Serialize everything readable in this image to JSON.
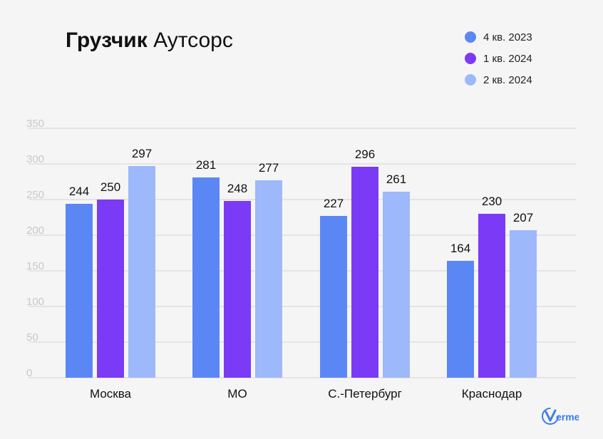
{
  "title": {
    "bold": "Грузчик",
    "rest": "Аутсорс"
  },
  "logo_text": "erme",
  "chart_data": {
    "type": "bar",
    "title": "Грузчик Аутсорс",
    "categories": [
      "Москва",
      "МО",
      "С.-Петербург",
      "Краснодар"
    ],
    "series": [
      {
        "name": "4 кв. 2023",
        "color": "#5b87f5",
        "values": [
          244,
          281,
          227,
          164
        ]
      },
      {
        "name": "1 кв. 2024",
        "color": "#7b3af5",
        "values": [
          250,
          248,
          296,
          230
        ]
      },
      {
        "name": "2 кв. 2024",
        "color": "#9db8fb",
        "values": [
          297,
          277,
          261,
          207
        ]
      }
    ],
    "ylim": [
      0,
      350
    ],
    "yticks": [
      "0",
      "50",
      "100",
      "150",
      "200",
      "250",
      "300",
      "350"
    ],
    "grid": true,
    "legend": "top-right",
    "xlabel": "",
    "ylabel": ""
  }
}
